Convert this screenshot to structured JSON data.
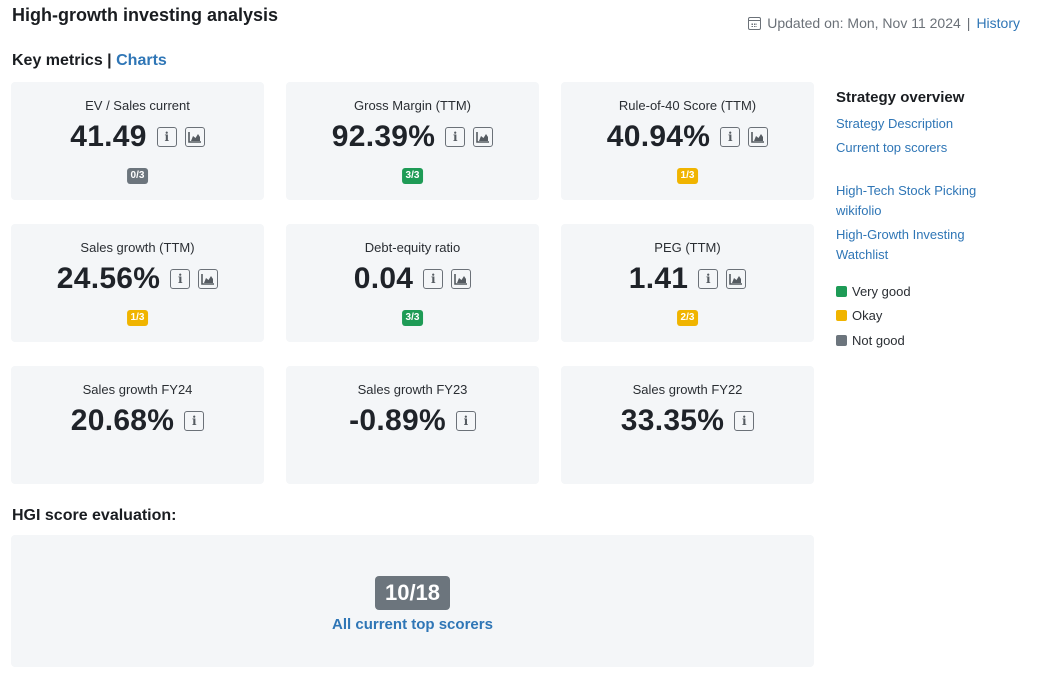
{
  "header": {
    "title": "High-growth investing analysis",
    "updated_label": "Updated on: Mon, Nov 11 2024",
    "separator": "|",
    "history_link": "History"
  },
  "section": {
    "key_metrics": "Key metrics",
    "separator": "|",
    "charts_link": "Charts"
  },
  "colors": {
    "very_good": "#1e9b56",
    "okay": "#f0b400",
    "not_good": "#6c757d",
    "link": "#2f76b6"
  },
  "metrics": [
    {
      "label": "EV / Sales current",
      "value": "41.49",
      "badge": "0/3",
      "rating": "not_good",
      "chart": true
    },
    {
      "label": "Gross Margin (TTM)",
      "value": "92.39%",
      "badge": "3/3",
      "rating": "very_good",
      "chart": true
    },
    {
      "label": "Rule-of-40 Score (TTM)",
      "value": "40.94%",
      "badge": "1/3",
      "rating": "okay",
      "chart": true
    },
    {
      "label": "Sales growth (TTM)",
      "value": "24.56%",
      "badge": "1/3",
      "rating": "okay",
      "chart": true
    },
    {
      "label": "Debt-equity ratio",
      "value": "0.04",
      "badge": "3/3",
      "rating": "very_good",
      "chart": true
    },
    {
      "label": "PEG (TTM)",
      "value": "1.41",
      "badge": "2/3",
      "rating": "okay",
      "chart": true
    },
    {
      "label": "Sales growth FY24",
      "value": "20.68%",
      "chart": false
    },
    {
      "label": "Sales growth FY23",
      "value": "-0.89%",
      "chart": false
    },
    {
      "label": "Sales growth FY22",
      "value": "33.35%",
      "chart": false
    }
  ],
  "evaluation": {
    "title": "HGI score evaluation:",
    "score": "10/18",
    "link": "All current top scorers"
  },
  "sidebar": {
    "title": "Strategy overview",
    "links": [
      "Strategy Description",
      "Current top scorers"
    ],
    "links2": [
      "High-Tech Stock Picking",
      "wikifolio"
    ],
    "links3": [
      "High-Growth Investing",
      "Watchlist"
    ],
    "legend": [
      {
        "label": "Very good",
        "rating": "very_good"
      },
      {
        "label": "Okay",
        "rating": "okay"
      },
      {
        "label": "Not good",
        "rating": "not_good"
      }
    ]
  },
  "icons": {
    "info": "info-icon",
    "chart": "area-chart-icon",
    "calendar": "calendar-icon"
  },
  "info_glyph": "i"
}
